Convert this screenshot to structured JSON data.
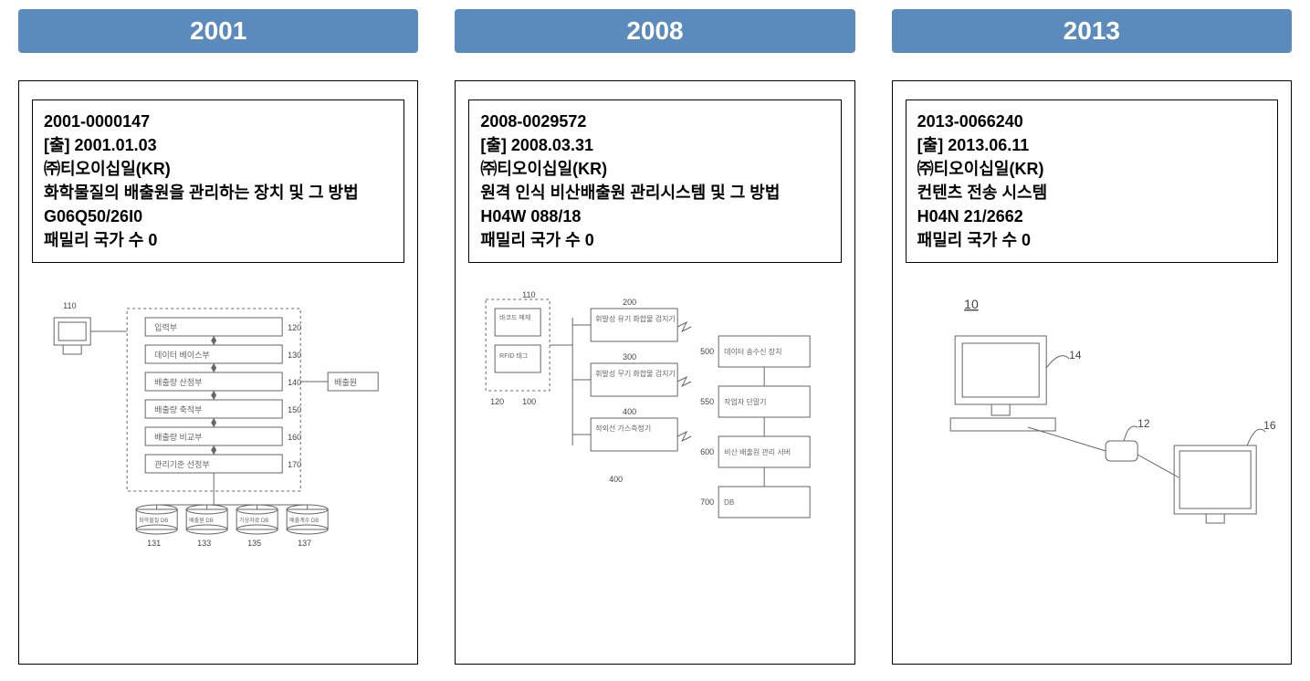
{
  "header_color": "#5b8bbd",
  "header_text_color": "#ffffff",
  "border_color": "#000000",
  "figure_stroke": "#666666",
  "cols": [
    {
      "year": "2001",
      "app_no": "2001-0000147",
      "date": "[출] 2001.01.03",
      "applicant": "㈜티오이십일(KR)",
      "title": "화학물질의 배출원을 관리하는 장치 및 그 방법",
      "ipc": "G06Q50/26I0",
      "family": "패밀리 국가 수 0",
      "fig": {
        "type": "flow-stack-with-dbs",
        "computer_label": "110",
        "stack": [
          {
            "label": "입력부",
            "num": "120"
          },
          {
            "label": "데이터 베이스부",
            "num": "130"
          },
          {
            "label": "배출량 산정부",
            "num": "140"
          },
          {
            "label": "배출량 축적부",
            "num": "150"
          },
          {
            "label": "배출량 비교부",
            "num": "160"
          },
          {
            "label": "관리기준 선정부",
            "num": "170"
          }
        ],
        "side_box": {
          "label": "배출원"
        },
        "dbs": [
          {
            "label": "화학물질 DB",
            "num": "131"
          },
          {
            "label": "배출원 DB",
            "num": "133"
          },
          {
            "label": "기상자료 DB",
            "num": "135"
          },
          {
            "label": "배출계수 DB",
            "num": "137"
          }
        ]
      }
    },
    {
      "year": "2008",
      "app_no": "2008-0029572",
      "date": "[출] 2008.03.31",
      "applicant": "㈜티오이십일(KR)",
      "title": "원격 인식 비산배출원 관리시스템 및 그 방법",
      "ipc": "H04W 088/18",
      "family": "패밀리 국가 수 0",
      "fig": {
        "type": "network-block",
        "left_group": {
          "boxes": [
            {
              "label": "바코드 매체",
              "num": "110"
            },
            {
              "label": "RFID 태그",
              "num": "120"
            }
          ],
          "group_num": "100"
        },
        "mid": [
          {
            "label": "휘발성 유기 화합물 검지기",
            "num": "200"
          },
          {
            "label": "휘발성 무기 화합물 검지기",
            "num": "300"
          },
          {
            "label": "적외선 가스측정기",
            "num": "400"
          }
        ],
        "right": [
          {
            "label": "데이터 송수신 장치",
            "num": "500"
          },
          {
            "label": "작업자 단말기",
            "num": "550"
          },
          {
            "label": "비산 배출원 관리 서버",
            "num": "600"
          },
          {
            "label": "DB",
            "num": "700"
          }
        ]
      }
    },
    {
      "year": "2013",
      "app_no": "2013-0066240",
      "date": "[출] 2013.06.11",
      "applicant": "㈜티오이십일(KR)",
      "title": "컨텐츠 전송 시스템",
      "ipc": "H04N 21/2662",
      "family": "패밀리 국가 수 0",
      "fig": {
        "type": "devices-link",
        "system_num": "10",
        "devices": [
          {
            "kind": "pc",
            "num": "14"
          },
          {
            "kind": "dongle",
            "num": "12"
          },
          {
            "kind": "tv",
            "num": "16"
          }
        ]
      }
    }
  ]
}
